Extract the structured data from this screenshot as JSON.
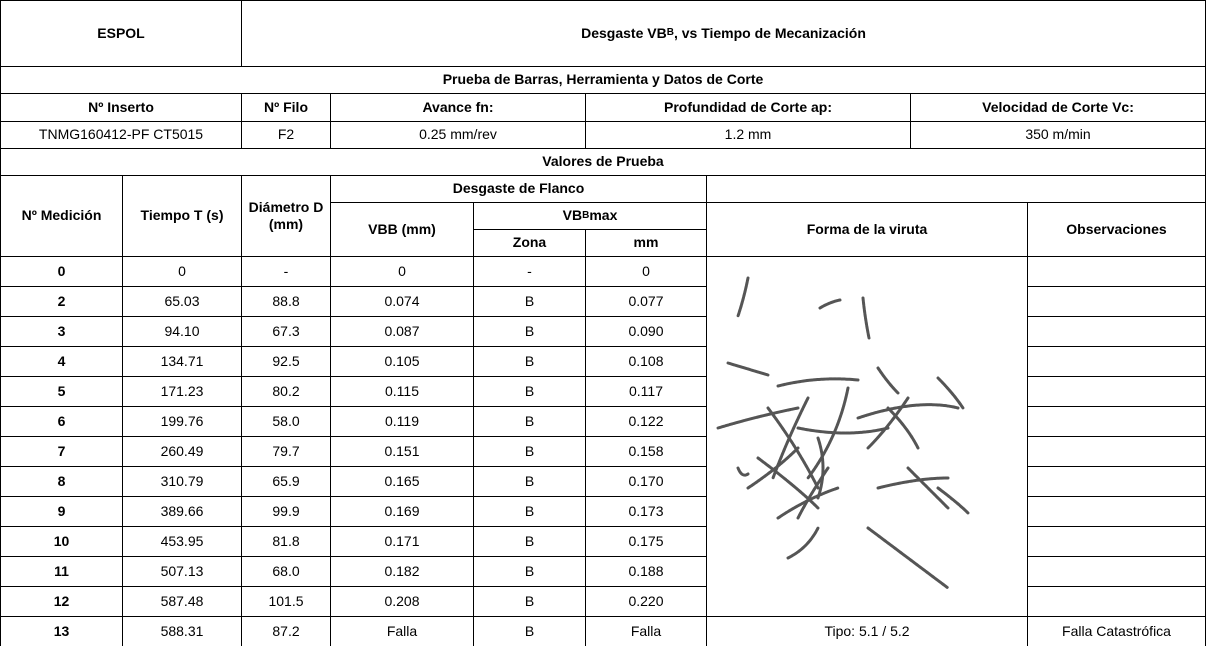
{
  "header": {
    "org": "ESPOL",
    "title": {
      "text": "Desgaste VB",
      "sub": "B",
      "rest": ", vs Tiempo de Mecanización"
    }
  },
  "test_info": {
    "title": "Prueba de Barras, Herramienta y Datos de Corte",
    "headers": [
      "Nº Inserto",
      "Nº Filo",
      "Avance fn:",
      "Profundidad de Corte ap:",
      "Velocidad de Corte Vc:"
    ],
    "values": [
      "TNMG160412-PF CT5015",
      "F2",
      "0.25 mm/rev",
      "1.2 mm",
      "350 m/min"
    ]
  },
  "section_title": "Valores de Prueba",
  "columns": {
    "medicion": "Nº Medición",
    "tiempo": "Tiempo T (s)",
    "diametro": "Diámetro D (mm)",
    "desgaste": "Desgaste de Flanco",
    "vbb": "VBB (mm)",
    "vbmax": {
      "text": "VB",
      "sub": "B",
      "rest": " max"
    },
    "zona": "Zona",
    "mm": "mm",
    "forma": "Forma de la viruta",
    "observaciones": "Observaciones"
  },
  "table": {
    "rows": [
      [
        "0",
        "0",
        "-",
        "0",
        "-",
        "0"
      ],
      [
        "2",
        "65.03",
        "88.8",
        "0.074",
        "B",
        "0.077"
      ],
      [
        "3",
        "94.10",
        "67.3",
        "0.087",
        "B",
        "0.090"
      ],
      [
        "4",
        "134.71",
        "92.5",
        "0.105",
        "B",
        "0.108"
      ],
      [
        "5",
        "171.23",
        "80.2",
        "0.115",
        "B",
        "0.117"
      ],
      [
        "6",
        "199.76",
        "58.0",
        "0.119",
        "B",
        "0.122"
      ],
      [
        "7",
        "260.49",
        "79.7",
        "0.151",
        "B",
        "0.158"
      ],
      [
        "8",
        "310.79",
        "65.9",
        "0.165",
        "B",
        "0.170"
      ],
      [
        "9",
        "389.66",
        "99.9",
        "0.169",
        "B",
        "0.173"
      ],
      [
        "10",
        "453.95",
        "81.8",
        "0.171",
        "B",
        "0.175"
      ],
      [
        "11",
        "507.13",
        "68.0",
        "0.182",
        "B",
        "0.188"
      ],
      [
        "12",
        "587.48",
        "101.5",
        "0.208",
        "B",
        "0.220"
      ],
      [
        "13",
        "588.31",
        "87.2",
        "Falla",
        "B",
        "Falla"
      ]
    ]
  },
  "footer": {
    "forma": "Tipo: 5.1 / 5.2",
    "observaciones": "Falla Catastrófica"
  }
}
